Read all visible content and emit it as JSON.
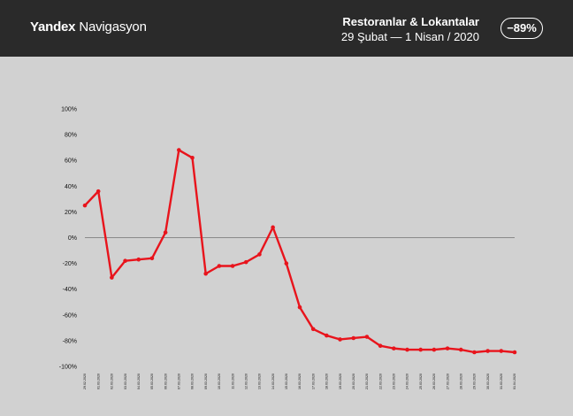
{
  "header": {
    "brand_bold": "Yandex",
    "brand_regular": "Navigasyon",
    "title": "Restoranlar & Lokantalar",
    "subtitle": "29 Şubat  —  1 Nisan / 2020",
    "badge": "−89%"
  },
  "colors": {
    "line": "#e8141c",
    "background": "#d1d1d1",
    "header_bg": "#2a2a2a"
  },
  "chart_data": {
    "type": "line",
    "title": "",
    "xlabel": "",
    "ylabel": "",
    "ylim": [
      -100,
      100
    ],
    "yticks": [
      "100%",
      "80%",
      "60%",
      "40%",
      "20%",
      "0%",
      "-20%",
      "-40%",
      "-60%",
      "-80%",
      "-100%"
    ],
    "grid": false,
    "zero_line": true,
    "categories": [
      "29.02.2020",
      "01.03.2020",
      "02.03.2020",
      "03.03.2020",
      "04.03.2020",
      "05.03.2020",
      "06.03.2020",
      "07.03.2020",
      "08.03.2020",
      "09.03.2020",
      "10.03.2020",
      "11.03.2020",
      "12.03.2020",
      "13.03.2020",
      "14.03.2020",
      "15.03.2020",
      "16.03.2020",
      "17.03.2020",
      "18.03.2020",
      "19.03.2020",
      "20.03.2020",
      "21.03.2020",
      "22.03.2020",
      "23.03.2020",
      "24.03.2020",
      "25.03.2020",
      "26.03.2020",
      "27.03.2020",
      "28.03.2020",
      "29.03.2020",
      "30.03.2020",
      "31.03.2020",
      "01.04.2020"
    ],
    "series": [
      {
        "values": [
          25,
          36,
          -31,
          -18,
          -17,
          -16,
          4,
          68,
          62,
          -28,
          -22,
          -22,
          -19,
          -13,
          8,
          -20,
          -54,
          -71,
          -76,
          -79,
          -78,
          -77,
          -84,
          -86,
          -87,
          -87,
          -87,
          -86,
          -87,
          -89,
          -88,
          -88,
          -89
        ]
      }
    ]
  }
}
